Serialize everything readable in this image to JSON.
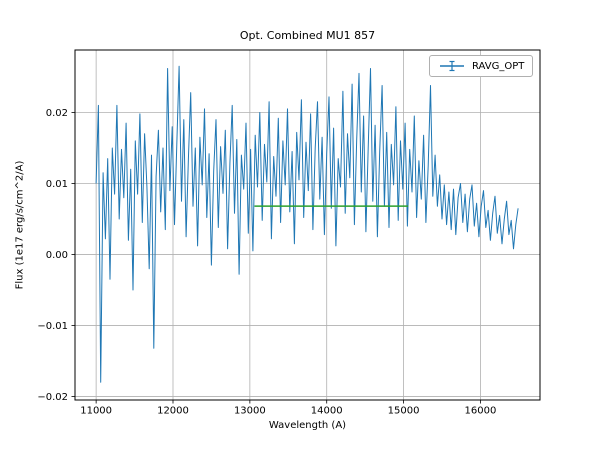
{
  "chart_data": {
    "type": "line",
    "title": "Opt. Combined MU1 857",
    "xlabel": "Wavelength (A)",
    "ylabel": "Flux (1e17 erg/s/cm^2/A)",
    "xlim": [
      10725,
      16775
    ],
    "ylim": [
      -0.0205,
      0.0288
    ],
    "grid": true,
    "legend_position": "upper right",
    "x_ticks": [
      {
        "v": 11000,
        "label": "11000"
      },
      {
        "v": 12000,
        "label": "12000"
      },
      {
        "v": 13000,
        "label": "13000"
      },
      {
        "v": 14000,
        "label": "14000"
      },
      {
        "v": 15000,
        "label": "15000"
      },
      {
        "v": 16000,
        "label": "16000"
      }
    ],
    "y_ticks": [
      {
        "v": -0.02,
        "label": "−0.02"
      },
      {
        "v": -0.01,
        "label": "−0.01"
      },
      {
        "v": 0.0,
        "label": "0.00"
      },
      {
        "v": 0.01,
        "label": "0.01"
      },
      {
        "v": 0.02,
        "label": "0.02"
      }
    ],
    "colors": {
      "grid": "#b0b0b0",
      "axes": "#000000",
      "background": "#ffffff"
    },
    "series": [
      {
        "name": "RAVG_OPT",
        "color": "#1f77b4",
        "style": "errorbar-line",
        "x_start": 11000,
        "x_step": 30,
        "values": [
          0.01,
          0.021,
          -0.018,
          0.0115,
          0.0022,
          0.0135,
          -0.0035,
          0.015,
          0.0085,
          0.021,
          0.005,
          0.0148,
          0.008,
          0.0185,
          0.002,
          0.012,
          -0.005,
          0.016,
          0.0085,
          0.0198,
          0.0045,
          0.017,
          0.0096,
          -0.002,
          0.014,
          -0.0132,
          0.011,
          0.0175,
          0.006,
          0.015,
          0.0035,
          0.0262,
          0.009,
          0.018,
          0.0042,
          0.0155,
          0.0265,
          0.0075,
          0.019,
          0.0025,
          0.0135,
          0.0228,
          0.0068,
          0.015,
          0.0012,
          0.0165,
          0.0098,
          0.0205,
          0.0052,
          0.0142,
          -0.0015,
          0.0118,
          0.019,
          0.0038,
          0.0152,
          0.0086,
          0.0175,
          0.0008,
          0.0128,
          0.021,
          0.0058,
          0.0162,
          -0.0028,
          0.014,
          0.0092,
          0.0185,
          0.003,
          0.0148,
          0.0005,
          0.0168,
          0.0095,
          0.02,
          0.0048,
          0.0155,
          0.0102,
          0.0215,
          0.0022,
          0.0138,
          0.0082,
          0.0192,
          0.0045,
          0.016,
          0.0098,
          0.0205,
          0.006,
          0.0145,
          0.0015,
          0.0172,
          0.0105,
          0.0218,
          0.0052,
          0.0158,
          0.009,
          0.0198,
          0.0035,
          0.015,
          0.0215,
          0.0078,
          0.0165,
          0.0028,
          0.0142,
          0.0222,
          0.0065,
          0.0178,
          0.0012,
          0.0135,
          0.0095,
          0.023,
          0.0058,
          0.017,
          0.0108,
          0.024,
          0.0042,
          0.0162,
          0.0255,
          0.0088,
          0.0195,
          0.0032,
          0.015,
          0.0262,
          0.0075,
          0.0182,
          0.0025,
          0.0145,
          0.0238,
          0.0068,
          0.0172,
          0.0038,
          0.0155,
          0.0098,
          0.0208,
          0.0048,
          0.016,
          0.0092,
          0.0185,
          0.004,
          0.0148,
          0.0088,
          0.0195,
          0.0052,
          0.0132,
          0.0078,
          0.0168,
          0.0045,
          0.0125,
          0.0238,
          0.0082,
          0.014,
          0.0068,
          0.0112,
          0.005,
          0.0098,
          0.0042,
          0.0088,
          0.0035,
          0.0092,
          0.0028,
          0.008,
          0.01,
          0.0045,
          0.0085,
          0.0032,
          0.0078,
          0.0098,
          0.004,
          0.0072,
          0.0025,
          0.0068,
          0.009,
          0.0038,
          0.0062,
          0.002,
          0.0058,
          0.0082,
          0.003,
          0.0055,
          0.0015,
          0.005,
          0.0075,
          0.0028,
          0.0048,
          0.0008,
          0.0042,
          0.0065
        ]
      }
    ],
    "overlays": [
      {
        "type": "hline-segment",
        "color": "#2ca02c",
        "y": 0.0068,
        "x1": 13060,
        "x2": 15060
      }
    ]
  }
}
